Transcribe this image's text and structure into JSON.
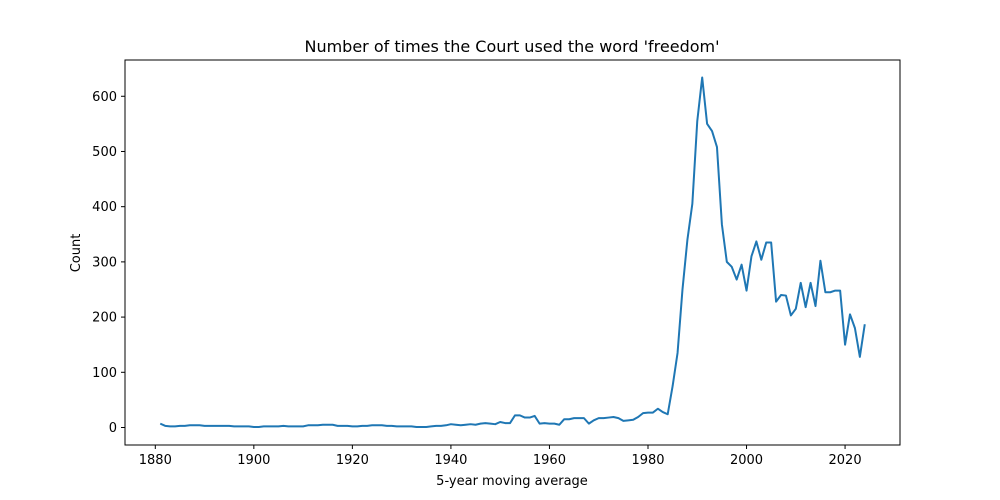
{
  "chart_data": {
    "type": "line",
    "title": "Number of times the Court used the word 'freedom'",
    "xlabel": "5-year moving average",
    "ylabel": "Count",
    "x": [
      1881,
      1882,
      1883,
      1884,
      1885,
      1886,
      1887,
      1888,
      1889,
      1890,
      1891,
      1892,
      1893,
      1894,
      1895,
      1896,
      1897,
      1898,
      1899,
      1900,
      1901,
      1902,
      1903,
      1904,
      1905,
      1906,
      1907,
      1908,
      1909,
      1910,
      1911,
      1912,
      1913,
      1914,
      1915,
      1916,
      1917,
      1918,
      1919,
      1920,
      1921,
      1922,
      1923,
      1924,
      1925,
      1926,
      1927,
      1928,
      1929,
      1930,
      1931,
      1932,
      1933,
      1934,
      1935,
      1936,
      1937,
      1938,
      1939,
      1940,
      1941,
      1942,
      1943,
      1944,
      1945,
      1946,
      1947,
      1948,
      1949,
      1950,
      1951,
      1952,
      1953,
      1954,
      1955,
      1956,
      1957,
      1958,
      1959,
      1960,
      1961,
      1962,
      1963,
      1964,
      1965,
      1966,
      1967,
      1968,
      1969,
      1970,
      1971,
      1972,
      1973,
      1974,
      1975,
      1976,
      1977,
      1978,
      1979,
      1980,
      1981,
      1982,
      1983,
      1984,
      1985,
      1986,
      1987,
      1988,
      1989,
      1990,
      1991,
      1992,
      1993,
      1994,
      1995,
      1996,
      1997,
      1998,
      1999,
      2000,
      2001,
      2002,
      2003,
      2004,
      2005,
      2006,
      2007,
      2008,
      2009,
      2010,
      2011,
      2012,
      2013,
      2014,
      2015,
      2016,
      2017,
      2018,
      2019,
      2020,
      2021,
      2022,
      2023,
      2024
    ],
    "values": [
      7,
      3,
      2,
      2,
      3,
      3,
      4,
      4,
      4,
      3,
      3,
      3,
      3,
      3,
      3,
      2,
      2,
      2,
      2,
      1,
      1,
      2,
      2,
      2,
      2,
      3,
      2,
      2,
      2,
      2,
      4,
      4,
      4,
      5,
      5,
      5,
      3,
      3,
      3,
      2,
      2,
      3,
      3,
      4,
      4,
      4,
      3,
      3,
      2,
      2,
      2,
      2,
      1,
      1,
      1,
      2,
      3,
      3,
      4,
      6,
      5,
      4,
      5,
      6,
      5,
      7,
      8,
      7,
      6,
      10,
      8,
      8,
      22,
      22,
      18,
      18,
      21,
      7,
      8,
      7,
      7,
      5,
      15,
      15,
      17,
      17,
      17,
      7,
      13,
      17,
      17,
      18,
      19,
      17,
      12,
      13,
      14,
      19,
      26,
      27,
      27,
      34,
      28,
      24,
      75,
      135,
      250,
      340,
      405,
      555,
      634,
      550,
      537,
      508,
      368,
      300,
      291,
      268,
      295,
      248,
      310,
      337,
      304,
      335,
      335,
      228,
      240,
      239,
      203,
      215,
      262,
      218,
      262,
      220,
      302,
      245,
      245,
      248,
      248,
      150,
      205,
      180,
      128,
      187
    ],
    "color": "#1f77b4",
    "xlim": [
      1873.85,
      2031.15
    ],
    "ylim": [
      -31.7,
      665.7
    ],
    "xticks": [
      1880,
      1900,
      1920,
      1940,
      1960,
      1980,
      2000,
      2020
    ],
    "yticks": [
      0,
      100,
      200,
      300,
      400,
      500,
      600
    ]
  }
}
